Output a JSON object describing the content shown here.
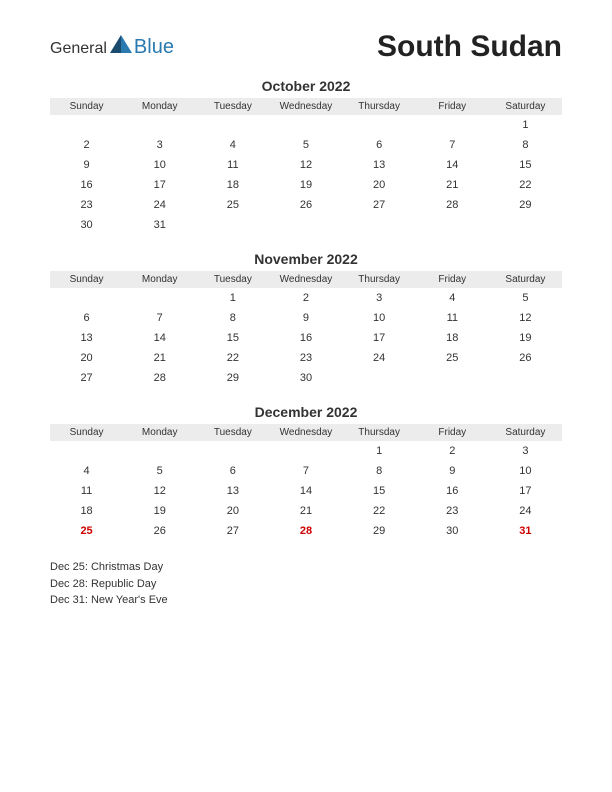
{
  "logo": {
    "text_general": "General",
    "text_blue": "Blue"
  },
  "country": "South Sudan",
  "day_headers": [
    "Sunday",
    "Monday",
    "Tuesday",
    "Wednesday",
    "Thursday",
    "Friday",
    "Saturday"
  ],
  "colors": {
    "header_bg": "#ececec",
    "text": "#333333",
    "holiday": "#cc0000",
    "logo_blue": "#2a7ab0",
    "logo_dark": "#1a4a6e"
  },
  "months": [
    {
      "title": "October 2022",
      "weeks": [
        [
          "",
          "",
          "",
          "",
          "",
          "",
          "1"
        ],
        [
          "2",
          "3",
          "4",
          "5",
          "6",
          "7",
          "8"
        ],
        [
          "9",
          "10",
          "11",
          "12",
          "13",
          "14",
          "15"
        ],
        [
          "16",
          "17",
          "18",
          "19",
          "20",
          "21",
          "22"
        ],
        [
          "23",
          "24",
          "25",
          "26",
          "27",
          "28",
          "29"
        ],
        [
          "30",
          "31",
          "",
          "",
          "",
          "",
          ""
        ]
      ],
      "holidays": []
    },
    {
      "title": "November 2022",
      "weeks": [
        [
          "",
          "",
          "1",
          "2",
          "3",
          "4",
          "5"
        ],
        [
          "6",
          "7",
          "8",
          "9",
          "10",
          "11",
          "12"
        ],
        [
          "13",
          "14",
          "15",
          "16",
          "17",
          "18",
          "19"
        ],
        [
          "20",
          "21",
          "22",
          "23",
          "24",
          "25",
          "26"
        ],
        [
          "27",
          "28",
          "29",
          "30",
          "",
          "",
          ""
        ]
      ],
      "holidays": []
    },
    {
      "title": "December 2022",
      "weeks": [
        [
          "",
          "",
          "",
          "",
          "1",
          "2",
          "3"
        ],
        [
          "4",
          "5",
          "6",
          "7",
          "8",
          "9",
          "10"
        ],
        [
          "11",
          "12",
          "13",
          "14",
          "15",
          "16",
          "17"
        ],
        [
          "18",
          "19",
          "20",
          "21",
          "22",
          "23",
          "24"
        ],
        [
          "25",
          "26",
          "27",
          "28",
          "29",
          "30",
          "31"
        ]
      ],
      "holidays": [
        "25",
        "28",
        "31"
      ]
    }
  ],
  "holiday_notes": [
    "Dec 25: Christmas Day",
    "Dec 28: Republic Day",
    "Dec 31: New Year's Eve"
  ]
}
